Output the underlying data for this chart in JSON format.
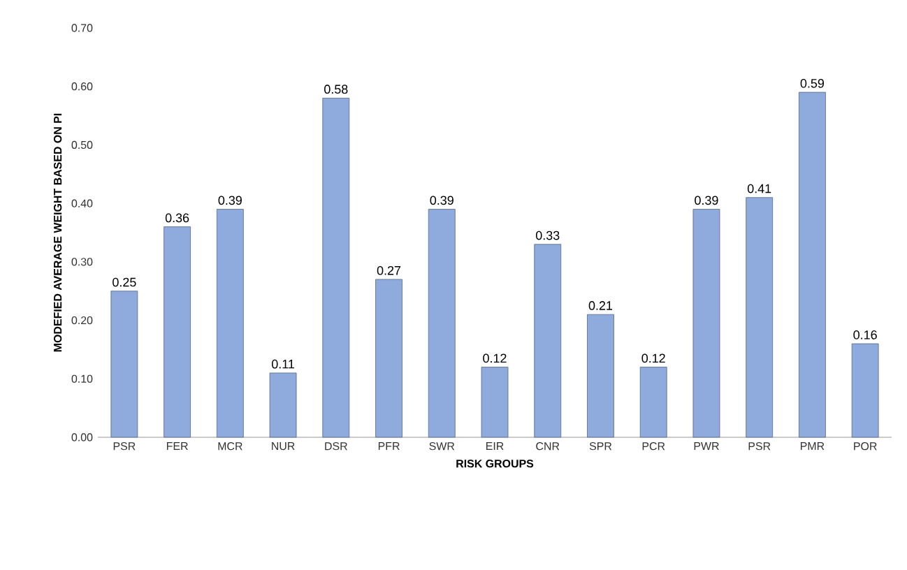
{
  "chart_data": {
    "type": "bar",
    "xlabel": "RISK GROUPS",
    "ylabel": "MODEFIED AVERAGE WEIGHT BASED ON PI",
    "categories": [
      "PSR",
      "FER",
      "MCR",
      "NUR",
      "DSR",
      "PFR",
      "SWR",
      "EIR",
      "CNR",
      "SPR",
      "PCR",
      "PWR",
      "PSR",
      "PMR",
      "POR"
    ],
    "values": [
      0.25,
      0.36,
      0.39,
      0.11,
      0.58,
      0.27,
      0.39,
      0.12,
      0.33,
      0.21,
      0.12,
      0.39,
      0.41,
      0.59,
      0.16
    ],
    "color": "#8faadc",
    "ylim": [
      0,
      0.7
    ],
    "yticks": [
      {
        "value": 0,
        "label": "0.00"
      },
      {
        "value": 0.1,
        "label": "0.10"
      },
      {
        "value": 0.2,
        "label": "0.20"
      },
      {
        "value": 0.3,
        "label": "0.30"
      },
      {
        "value": 0.4,
        "label": "0.40"
      },
      {
        "value": 0.5,
        "label": "0.50"
      },
      {
        "value": 0.6,
        "label": "0.60"
      },
      {
        "value": 0.7,
        "label": "0.70"
      }
    ],
    "data_labels": true,
    "grid": false
  }
}
